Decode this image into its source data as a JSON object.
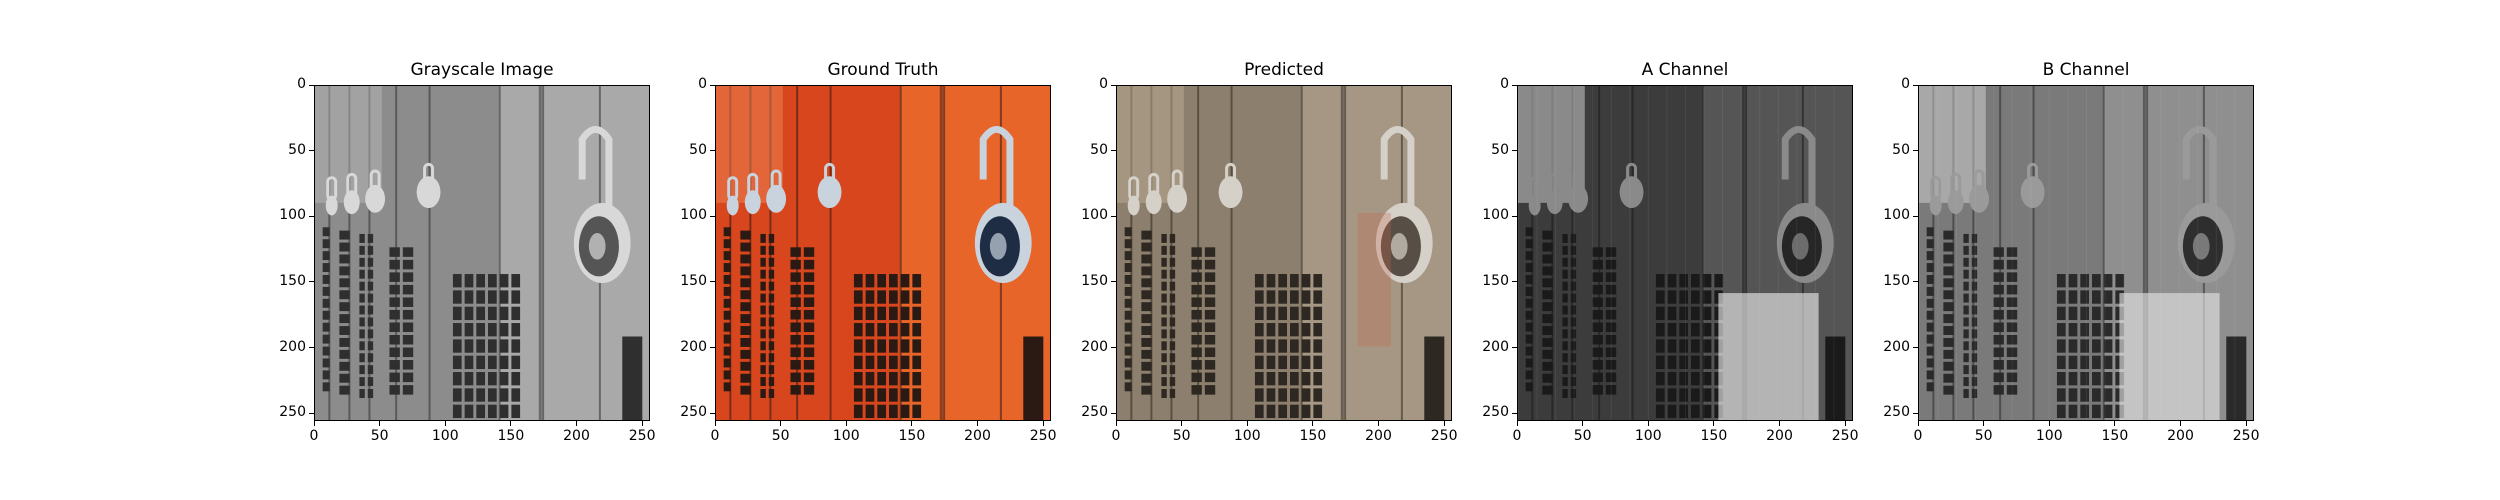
{
  "figure": {
    "panels": [
      {
        "id": "grayscale",
        "title": "Grayscale Image",
        "image": "grayscale-lockers",
        "palette": {
          "bg": "#8c8c8c",
          "mid": "#a9a9a9",
          "dark": "#2f2f2f",
          "lock": "#d8d8d8",
          "lockDark": "#555555",
          "light": "#bdbdbd"
        },
        "x_ticks": [
          "0",
          "50",
          "100",
          "150",
          "200",
          "250"
        ],
        "y_ticks": [
          "0",
          "50",
          "100",
          "150",
          "200",
          "250"
        ]
      },
      {
        "id": "ground-truth",
        "title": "Ground Truth",
        "image": "color-lockers",
        "palette": {
          "bg": "#d8461e",
          "mid": "#e8652a",
          "dark": "#2b1a14",
          "lock": "#c9d3de",
          "lockDark": "#1f2d44",
          "light": "#f08d5e"
        },
        "x_ticks": [
          "0",
          "50",
          "100",
          "150",
          "200",
          "250"
        ],
        "y_ticks": [
          "0",
          "50",
          "100",
          "150",
          "200",
          "250"
        ]
      },
      {
        "id": "predicted",
        "title": "Predicted",
        "image": "predicted-lockers",
        "palette": {
          "bg": "#8d7f6d",
          "mid": "#a59784",
          "dark": "#2e2822",
          "lock": "#d5d1c9",
          "lockDark": "#574f45",
          "light": "#c4b39a"
        },
        "x_ticks": [
          "0",
          "50",
          "100",
          "150",
          "200",
          "250"
        ],
        "y_ticks": [
          "0",
          "50",
          "100",
          "150",
          "200",
          "250"
        ]
      },
      {
        "id": "a-channel",
        "title": "A Channel",
        "image": "a-channel-map",
        "palette": {
          "bg": "#3c3c3c",
          "mid": "#555555",
          "dark": "#1a1a1a",
          "lock": "#8a8a8a",
          "lockDark": "#262626",
          "light": "#e8e8e8"
        },
        "x_ticks": [
          "0",
          "50",
          "100",
          "150",
          "200",
          "250"
        ],
        "y_ticks": [
          "0",
          "50",
          "100",
          "150",
          "200",
          "250"
        ]
      },
      {
        "id": "b-channel",
        "title": "B Channel",
        "image": "b-channel-map",
        "palette": {
          "bg": "#7a7a7a",
          "mid": "#8f8f8f",
          "dark": "#2a2a2a",
          "lock": "#9a9a9a",
          "lockDark": "#2e2e2e",
          "light": "#e0e0e0"
        },
        "x_ticks": [
          "0",
          "50",
          "100",
          "150",
          "200",
          "250"
        ],
        "y_ticks": [
          "0",
          "50",
          "100",
          "150",
          "200",
          "250"
        ]
      }
    ]
  }
}
